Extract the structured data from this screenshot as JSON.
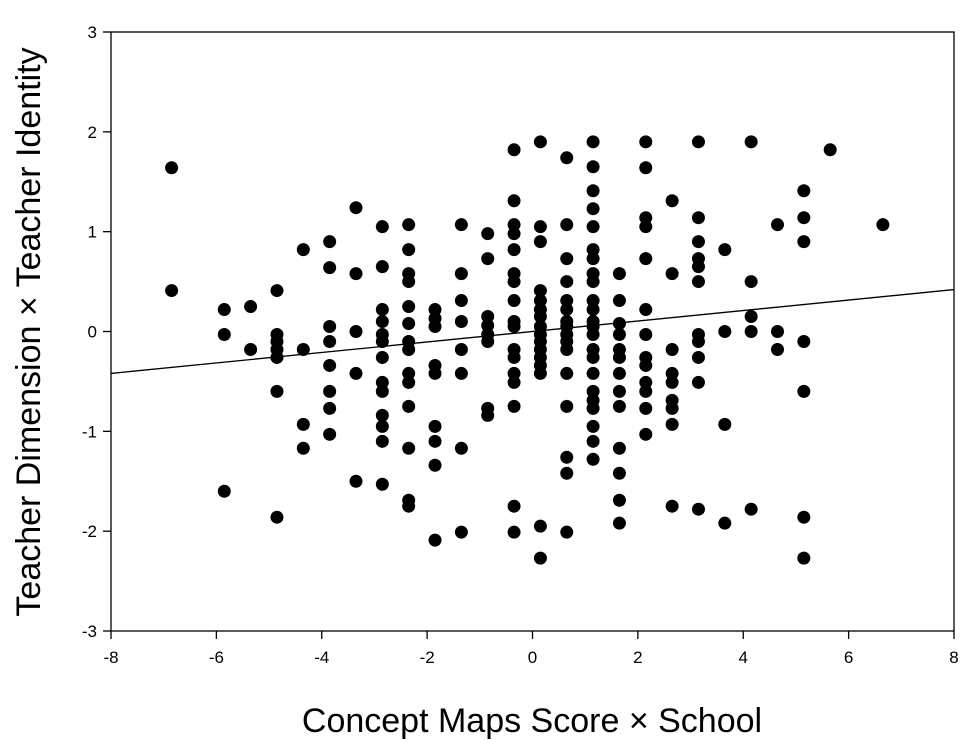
{
  "chart_data": {
    "type": "scatter",
    "title": "",
    "xlabel": "Concept Maps Score × School",
    "ylabel": "Teacher Dimension × Teacher Identity",
    "xlim": [
      -8,
      8
    ],
    "ylim": [
      -3,
      3
    ],
    "xticks": [
      "-8",
      "-6",
      "-4",
      "-2",
      "0",
      "2",
      "4",
      "6",
      "8"
    ],
    "yticks": [
      "3",
      "2",
      "1",
      "0",
      "-1",
      "-2",
      "-3"
    ],
    "grid": false,
    "legend": "none",
    "marker_color": "#000000",
    "trend_line": {
      "x": [
        -8,
        8
      ],
      "y": [
        -0.42,
        0.42
      ]
    },
    "points": [
      [
        -6.85,
        1.64
      ],
      [
        -6.85,
        0.41
      ],
      [
        -5.85,
        0.22
      ],
      [
        -5.85,
        -0.03
      ],
      [
        -5.85,
        -1.6
      ],
      [
        -5.35,
        0.25
      ],
      [
        -5.35,
        -0.18
      ],
      [
        -4.85,
        0.41
      ],
      [
        -4.85,
        -0.03
      ],
      [
        -4.85,
        -0.1
      ],
      [
        -4.85,
        -0.18
      ],
      [
        -4.85,
        -0.26
      ],
      [
        -4.85,
        -0.6
      ],
      [
        -4.85,
        -1.86
      ],
      [
        -4.35,
        0.82
      ],
      [
        -4.35,
        -0.18
      ],
      [
        -4.35,
        -0.93
      ],
      [
        -4.35,
        -1.17
      ],
      [
        -3.85,
        0.9
      ],
      [
        -3.85,
        0.64
      ],
      [
        -3.85,
        0.05
      ],
      [
        -3.85,
        -0.1
      ],
      [
        -3.85,
        -0.34
      ],
      [
        -3.85,
        -0.6
      ],
      [
        -3.85,
        -0.77
      ],
      [
        -3.85,
        -1.03
      ],
      [
        -3.35,
        1.24
      ],
      [
        -3.35,
        0.58
      ],
      [
        -3.35,
        0.0
      ],
      [
        -3.35,
        -0.42
      ],
      [
        -3.35,
        -1.5
      ],
      [
        -2.85,
        1.05
      ],
      [
        -2.85,
        0.65
      ],
      [
        -2.85,
        0.22
      ],
      [
        -2.85,
        0.1
      ],
      [
        -2.85,
        -0.03
      ],
      [
        -2.85,
        -0.1
      ],
      [
        -2.85,
        -0.26
      ],
      [
        -2.85,
        -0.51
      ],
      [
        -2.85,
        -0.6
      ],
      [
        -2.85,
        -0.84
      ],
      [
        -2.85,
        -0.95
      ],
      [
        -2.85,
        -1.1
      ],
      [
        -2.85,
        -1.53
      ],
      [
        -2.35,
        1.07
      ],
      [
        -2.35,
        0.82
      ],
      [
        -2.35,
        0.58
      ],
      [
        -2.35,
        0.5
      ],
      [
        -2.35,
        0.25
      ],
      [
        -2.35,
        0.08
      ],
      [
        -2.35,
        -0.1
      ],
      [
        -2.35,
        -0.18
      ],
      [
        -2.35,
        -0.42
      ],
      [
        -2.35,
        -0.51
      ],
      [
        -2.35,
        -0.75
      ],
      [
        -2.35,
        -1.17
      ],
      [
        -2.35,
        -1.69
      ],
      [
        -2.35,
        -1.75
      ],
      [
        -1.85,
        0.22
      ],
      [
        -1.85,
        0.13
      ],
      [
        -1.85,
        0.05
      ],
      [
        -1.85,
        -0.34
      ],
      [
        -1.85,
        -0.42
      ],
      [
        -1.85,
        -0.95
      ],
      [
        -1.85,
        -1.1
      ],
      [
        -1.85,
        -1.34
      ],
      [
        -1.85,
        -2.09
      ],
      [
        -1.35,
        1.07
      ],
      [
        -1.35,
        0.58
      ],
      [
        -1.35,
        0.31
      ],
      [
        -1.35,
        0.1
      ],
      [
        -1.35,
        -0.18
      ],
      [
        -1.35,
        -0.42
      ],
      [
        -1.35,
        -1.17
      ],
      [
        -1.35,
        -2.01
      ],
      [
        -0.85,
        0.98
      ],
      [
        -0.85,
        0.73
      ],
      [
        -0.85,
        0.15
      ],
      [
        -0.85,
        0.06
      ],
      [
        -0.85,
        -0.03
      ],
      [
        -0.85,
        -0.1
      ],
      [
        -0.85,
        -0.77
      ],
      [
        -0.85,
        -0.84
      ],
      [
        -0.35,
        1.82
      ],
      [
        -0.35,
        1.31
      ],
      [
        -0.35,
        1.07
      ],
      [
        -0.35,
        0.98
      ],
      [
        -0.35,
        0.82
      ],
      [
        -0.35,
        0.58
      ],
      [
        -0.35,
        0.5
      ],
      [
        -0.35,
        0.31
      ],
      [
        -0.35,
        0.1
      ],
      [
        -0.35,
        0.05
      ],
      [
        -0.35,
        -0.18
      ],
      [
        -0.35,
        -0.26
      ],
      [
        -0.35,
        -0.42
      ],
      [
        -0.35,
        -0.51
      ],
      [
        -0.35,
        -0.75
      ],
      [
        -0.35,
        -1.75
      ],
      [
        -0.35,
        -2.01
      ],
      [
        0.15,
        1.9
      ],
      [
        0.15,
        1.05
      ],
      [
        0.15,
        0.9
      ],
      [
        0.15,
        0.41
      ],
      [
        0.15,
        0.31
      ],
      [
        0.15,
        0.22
      ],
      [
        0.15,
        0.15
      ],
      [
        0.15,
        0.05
      ],
      [
        0.15,
        -0.03
      ],
      [
        0.15,
        -0.1
      ],
      [
        0.15,
        -0.18
      ],
      [
        0.15,
        -0.26
      ],
      [
        0.15,
        -0.34
      ],
      [
        0.15,
        -0.42
      ],
      [
        0.15,
        -1.95
      ],
      [
        0.15,
        -2.27
      ],
      [
        0.65,
        1.74
      ],
      [
        0.65,
        1.07
      ],
      [
        0.65,
        0.73
      ],
      [
        0.65,
        0.5
      ],
      [
        0.65,
        0.31
      ],
      [
        0.65,
        0.22
      ],
      [
        0.65,
        0.1
      ],
      [
        0.65,
        0.05
      ],
      [
        0.65,
        -0.03
      ],
      [
        0.65,
        -0.1
      ],
      [
        0.65,
        -0.18
      ],
      [
        0.65,
        -0.42
      ],
      [
        0.65,
        -0.75
      ],
      [
        0.65,
        -1.26
      ],
      [
        0.65,
        -1.42
      ],
      [
        0.65,
        -2.01
      ],
      [
        1.15,
        1.9
      ],
      [
        1.15,
        1.65
      ],
      [
        1.15,
        1.41
      ],
      [
        1.15,
        1.23
      ],
      [
        1.15,
        1.05
      ],
      [
        1.15,
        0.82
      ],
      [
        1.15,
        0.73
      ],
      [
        1.15,
        0.58
      ],
      [
        1.15,
        0.5
      ],
      [
        1.15,
        0.31
      ],
      [
        1.15,
        0.22
      ],
      [
        1.15,
        0.1
      ],
      [
        1.15,
        0.05
      ],
      [
        1.15,
        -0.03
      ],
      [
        1.15,
        -0.18
      ],
      [
        1.15,
        -0.26
      ],
      [
        1.15,
        -0.42
      ],
      [
        1.15,
        -0.6
      ],
      [
        1.15,
        -0.69
      ],
      [
        1.15,
        -0.77
      ],
      [
        1.15,
        -0.95
      ],
      [
        1.15,
        -1.1
      ],
      [
        1.15,
        -1.28
      ],
      [
        1.65,
        0.58
      ],
      [
        1.65,
        0.31
      ],
      [
        1.65,
        0.08
      ],
      [
        1.65,
        -0.03
      ],
      [
        1.65,
        -0.18
      ],
      [
        1.65,
        -0.26
      ],
      [
        1.65,
        -0.42
      ],
      [
        1.65,
        -0.6
      ],
      [
        1.65,
        -0.75
      ],
      [
        1.65,
        -1.17
      ],
      [
        1.65,
        -1.42
      ],
      [
        1.65,
        -1.69
      ],
      [
        1.65,
        -1.92
      ],
      [
        2.15,
        1.9
      ],
      [
        2.15,
        1.64
      ],
      [
        2.15,
        1.14
      ],
      [
        2.15,
        1.05
      ],
      [
        2.15,
        0.73
      ],
      [
        2.15,
        0.22
      ],
      [
        2.15,
        -0.03
      ],
      [
        2.15,
        -0.26
      ],
      [
        2.15,
        -0.34
      ],
      [
        2.15,
        -0.51
      ],
      [
        2.15,
        -0.6
      ],
      [
        2.15,
        -0.77
      ],
      [
        2.15,
        -1.03
      ],
      [
        2.65,
        1.31
      ],
      [
        2.65,
        0.58
      ],
      [
        2.65,
        -0.18
      ],
      [
        2.65,
        -0.42
      ],
      [
        2.65,
        -0.51
      ],
      [
        2.65,
        -0.69
      ],
      [
        2.65,
        -0.77
      ],
      [
        2.65,
        -0.93
      ],
      [
        2.65,
        -1.75
      ],
      [
        3.15,
        1.9
      ],
      [
        3.15,
        1.14
      ],
      [
        3.15,
        0.9
      ],
      [
        3.15,
        0.73
      ],
      [
        3.15,
        0.65
      ],
      [
        3.15,
        0.5
      ],
      [
        3.15,
        -0.03
      ],
      [
        3.15,
        -0.1
      ],
      [
        3.15,
        -0.26
      ],
      [
        3.15,
        -0.51
      ],
      [
        3.15,
        -1.78
      ],
      [
        3.65,
        0.82
      ],
      [
        3.65,
        0.0
      ],
      [
        3.65,
        -0.93
      ],
      [
        3.65,
        -1.92
      ],
      [
        4.15,
        1.9
      ],
      [
        4.15,
        0.5
      ],
      [
        4.15,
        0.15
      ],
      [
        4.15,
        0.0
      ],
      [
        4.15,
        -1.78
      ],
      [
        4.65,
        1.07
      ],
      [
        4.65,
        0.0
      ],
      [
        4.65,
        -0.18
      ],
      [
        5.15,
        1.41
      ],
      [
        5.15,
        1.14
      ],
      [
        5.15,
        0.9
      ],
      [
        5.15,
        -0.1
      ],
      [
        5.15,
        -0.6
      ],
      [
        5.15,
        -1.86
      ],
      [
        5.15,
        -2.27
      ],
      [
        5.65,
        1.82
      ],
      [
        6.65,
        1.07
      ]
    ]
  }
}
